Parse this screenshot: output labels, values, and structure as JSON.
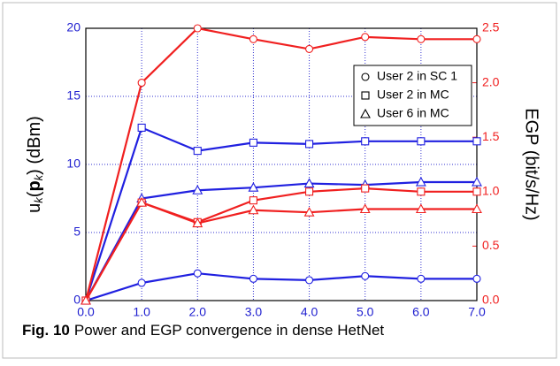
{
  "chart_data": {
    "type": "line",
    "ylabel": [
      "u",
      "k",
      "(",
      "p",
      "k",
      ") (dBm)"
    ],
    "y2label": "EGP (bit/s/Hz)",
    "caption_label": "Fig. 10",
    "caption_text": "Power and EGP convergence in dense HetNet",
    "x": [
      0,
      1,
      2,
      3,
      4,
      5,
      6,
      7
    ],
    "xlim": [
      0,
      7
    ],
    "xticks": [
      {
        "value": 0,
        "label": "0.0"
      },
      {
        "value": 1,
        "label": "1.0"
      },
      {
        "value": 2,
        "label": "2.0"
      },
      {
        "value": 3,
        "label": "3.0"
      },
      {
        "value": 4,
        "label": "4.0"
      },
      {
        "value": 5,
        "label": "5.0"
      },
      {
        "value": 6,
        "label": "6.0"
      },
      {
        "value": 7,
        "label": "7.0"
      }
    ],
    "ylim": [
      0,
      20
    ],
    "yticks": [
      0,
      5,
      10,
      15,
      20
    ],
    "y2lim": [
      0,
      2.5
    ],
    "y2ticks": [
      {
        "value": 0,
        "label": "0.0"
      },
      {
        "value": 0.5,
        "label": "0.5"
      },
      {
        "value": 1,
        "label": "1.0"
      },
      {
        "value": 1.5,
        "label": "1.5"
      },
      {
        "value": 2,
        "label": "2.0"
      },
      {
        "value": 2.5,
        "label": "2.5"
      }
    ],
    "grid": true,
    "legend": [
      {
        "name": "User 2 in SC 1",
        "marker": "circle"
      },
      {
        "name": "User 2 in MC",
        "marker": "square"
      },
      {
        "name": "User 6 in MC",
        "marker": "triangle"
      }
    ],
    "series": [
      {
        "marker": "circle",
        "color": "#2020e0",
        "axis": "y",
        "values": [
          0,
          1.3,
          2.0,
          1.6,
          1.5,
          1.8,
          1.6,
          1.6
        ]
      },
      {
        "marker": "square",
        "color": "#2020e0",
        "axis": "y",
        "values": [
          0,
          12.7,
          11.0,
          11.6,
          11.5,
          11.7,
          11.7,
          11.7
        ]
      },
      {
        "marker": "triangle",
        "color": "#2020e0",
        "axis": "y",
        "values": [
          0,
          7.5,
          8.1,
          8.3,
          8.6,
          8.5,
          8.7,
          8.7
        ]
      },
      {
        "marker": "circle",
        "color": "#f02020",
        "axis": "y2",
        "values": [
          0,
          2.0,
          2.5,
          2.4,
          2.31,
          2.42,
          2.4,
          2.4
        ]
      },
      {
        "marker": "square",
        "color": "#f02020",
        "axis": "y2",
        "values": [
          0,
          0.9,
          0.72,
          0.92,
          1.0,
          1.03,
          1.0,
          1.0
        ]
      },
      {
        "marker": "triangle",
        "color": "#f02020",
        "axis": "y2",
        "values": [
          0,
          0.9,
          0.71,
          0.83,
          0.81,
          0.84,
          0.84,
          0.84
        ]
      }
    ]
  }
}
